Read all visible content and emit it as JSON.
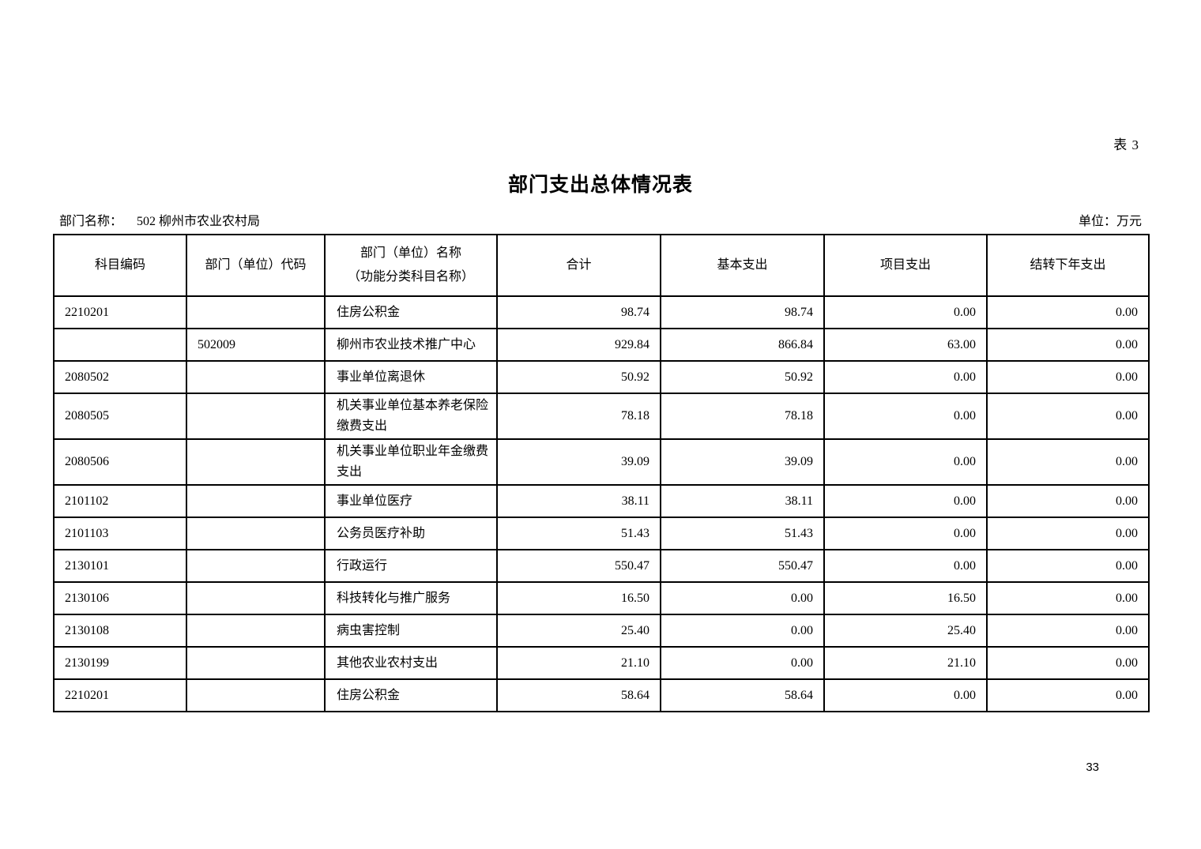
{
  "page": {
    "table_label": "表 3",
    "title": "部门支出总体情况表",
    "dept_label": "部门名称：",
    "dept_value": "502 柳州市农业农村局",
    "unit_label": "单位：万元",
    "page_number": "33"
  },
  "table": {
    "headers": [
      {
        "label": "科目编码"
      },
      {
        "label": "部门（单位）代码"
      },
      {
        "label": "部门（单位）名称",
        "sublabel": "（功能分类科目名称）"
      },
      {
        "label": "合计"
      },
      {
        "label": "基本支出"
      },
      {
        "label": "项目支出"
      },
      {
        "label": "结转下年支出"
      }
    ],
    "rows": [
      {
        "code": "2210201",
        "dept_code": "",
        "name": "住房公积金",
        "total": "98.74",
        "basic": "98.74",
        "project": "0.00",
        "carryover": "0.00"
      },
      {
        "code": "",
        "dept_code": "502009",
        "name": "柳州市农业技术推广中心",
        "total": "929.84",
        "basic": "866.84",
        "project": "63.00",
        "carryover": "0.00"
      },
      {
        "code": "2080502",
        "dept_code": "",
        "name": "事业单位离退休",
        "total": "50.92",
        "basic": "50.92",
        "project": "0.00",
        "carryover": "0.00"
      },
      {
        "code": "2080505",
        "dept_code": "",
        "name": "机关事业单位基本养老保险缴费支出",
        "total": "78.18",
        "basic": "78.18",
        "project": "0.00",
        "carryover": "0.00"
      },
      {
        "code": "2080506",
        "dept_code": "",
        "name": "机关事业单位职业年金缴费支出",
        "total": "39.09",
        "basic": "39.09",
        "project": "0.00",
        "carryover": "0.00"
      },
      {
        "code": "2101102",
        "dept_code": "",
        "name": "事业单位医疗",
        "total": "38.11",
        "basic": "38.11",
        "project": "0.00",
        "carryover": "0.00"
      },
      {
        "code": "2101103",
        "dept_code": "",
        "name": "公务员医疗补助",
        "total": "51.43",
        "basic": "51.43",
        "project": "0.00",
        "carryover": "0.00"
      },
      {
        "code": "2130101",
        "dept_code": "",
        "name": "行政运行",
        "total": "550.47",
        "basic": "550.47",
        "project": "0.00",
        "carryover": "0.00"
      },
      {
        "code": "2130106",
        "dept_code": "",
        "name": "科技转化与推广服务",
        "total": "16.50",
        "basic": "0.00",
        "project": "16.50",
        "carryover": "0.00"
      },
      {
        "code": "2130108",
        "dept_code": "",
        "name": "病虫害控制",
        "total": "25.40",
        "basic": "0.00",
        "project": "25.40",
        "carryover": "0.00"
      },
      {
        "code": "2130199",
        "dept_code": "",
        "name": "其他农业农村支出",
        "total": "21.10",
        "basic": "0.00",
        "project": "21.10",
        "carryover": "0.00"
      },
      {
        "code": "2210201",
        "dept_code": "",
        "name": "住房公积金",
        "total": "58.64",
        "basic": "58.64",
        "project": "0.00",
        "carryover": "0.00"
      }
    ]
  }
}
